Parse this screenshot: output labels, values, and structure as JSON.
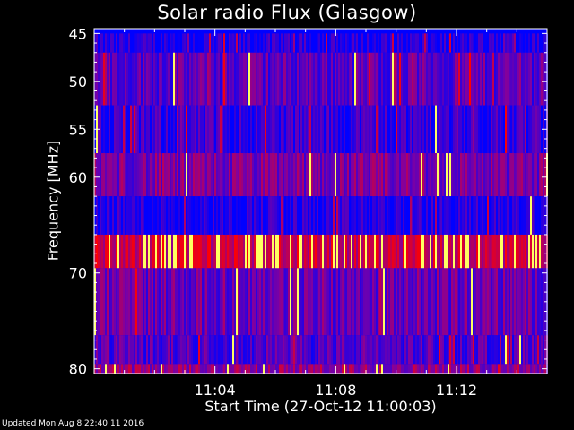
{
  "chart_data": {
    "type": "heatmap",
    "title": "Solar radio Flux (Glasgow)",
    "xlabel": "Start Time (27-Oct-12 11:00:03)",
    "ylabel": "Frequency [MHz]",
    "x_range_minutes": [
      11.0,
      11.25
    ],
    "x_ticks": [
      "11:04",
      "11:08",
      "11:12"
    ],
    "x_tick_values_min": [
      4,
      8,
      12
    ],
    "x_span_min": 15.0,
    "y_ticks": [
      45,
      50,
      55,
      60,
      70,
      80
    ],
    "ylim": [
      44.5,
      80.5
    ],
    "frequency_bands_mhz": [
      {
        "from": 45,
        "to": 47,
        "level": 0.1
      },
      {
        "from": 47,
        "to": 52.5,
        "level": 0.35
      },
      {
        "from": 52.5,
        "to": 57.5,
        "level": 0.2
      },
      {
        "from": 57.5,
        "to": 62,
        "level": 0.45
      },
      {
        "from": 62,
        "to": 66,
        "level": 0.12
      },
      {
        "from": 66,
        "to": 69.5,
        "level": 0.8
      },
      {
        "from": 69.5,
        "to": 76.5,
        "level": 0.4
      },
      {
        "from": 76.5,
        "to": 79.5,
        "level": 0.3
      },
      {
        "from": 79.5,
        "to": 80.5,
        "level": 0.55
      }
    ],
    "colors": {
      "low": "#0000ff",
      "mid": "#8000a0",
      "high": "#ff0000",
      "peak": "#ffff60"
    }
  },
  "footer": "Updated Mon Aug  8 22:40:11 2016"
}
